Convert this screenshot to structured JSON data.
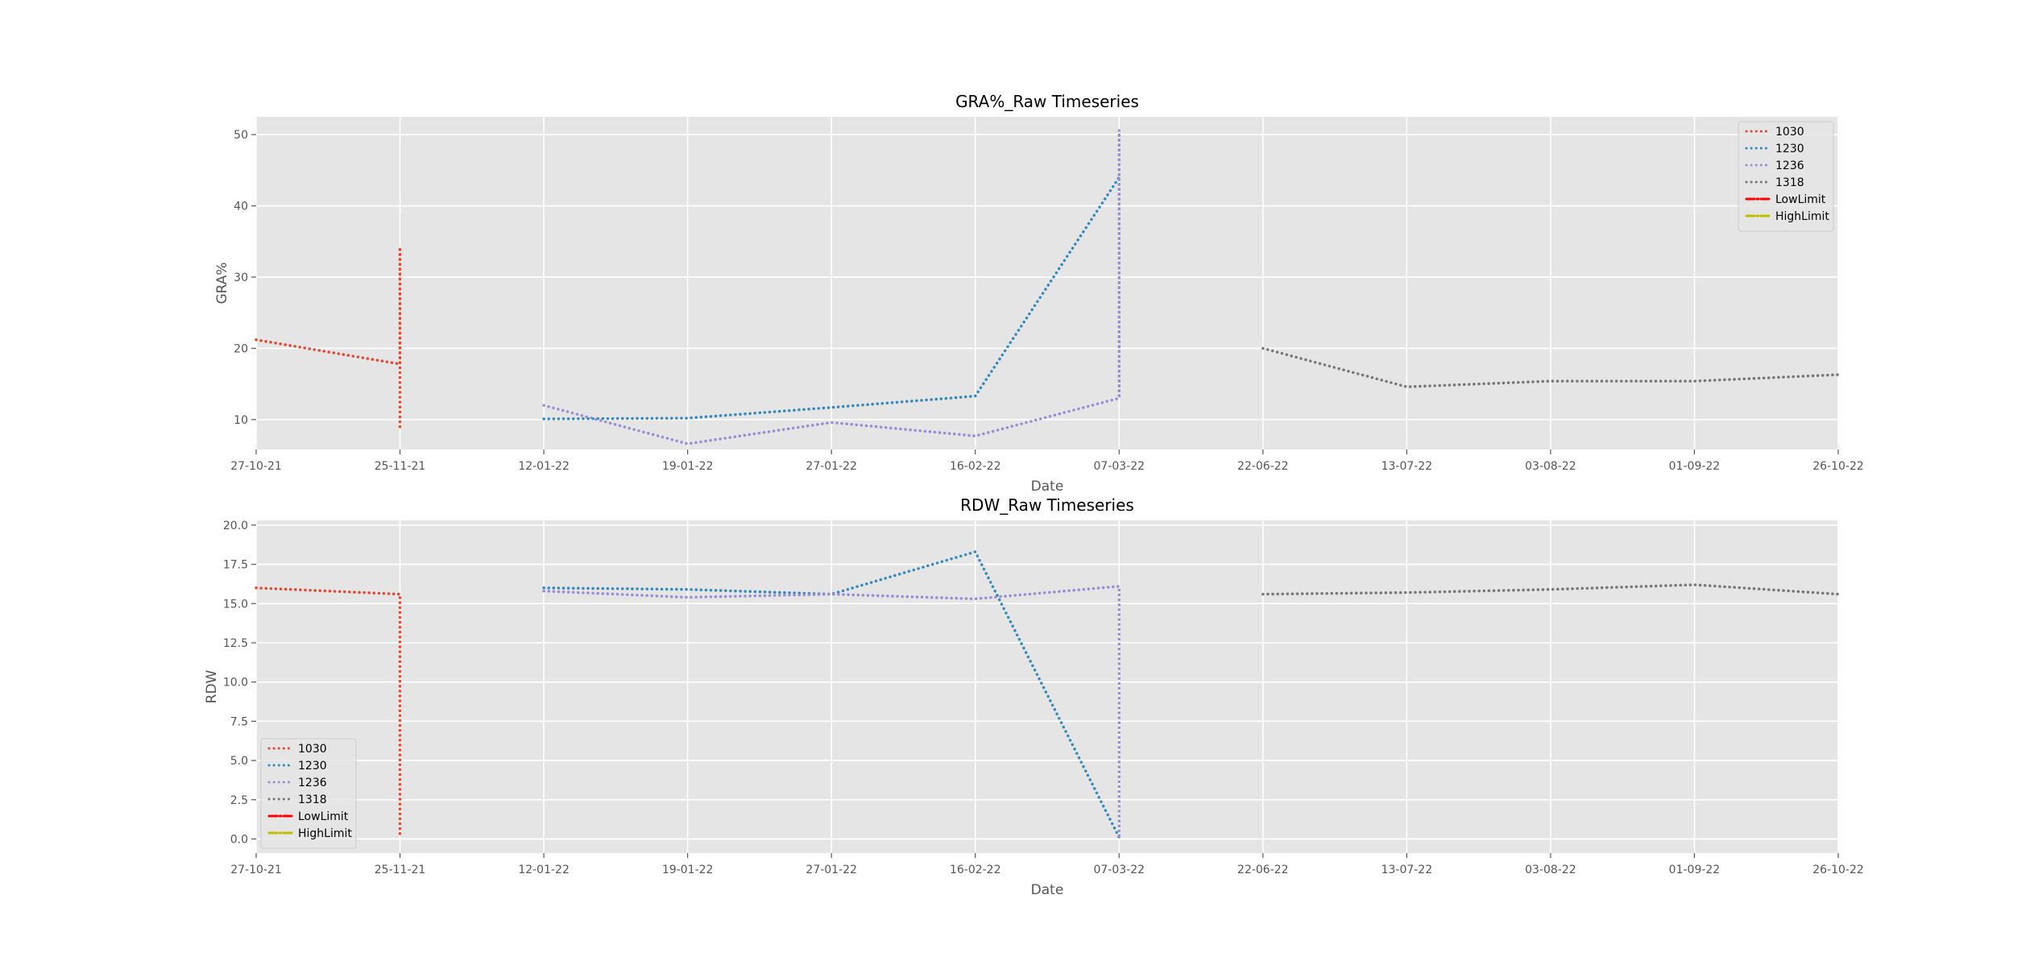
{
  "chart_data": [
    {
      "type": "line",
      "title": "GRA%_Raw Timeseries",
      "xlabel": "Date",
      "ylabel": "GRA%",
      "x_tick_labels": [
        "27-10-21",
        "25-11-21",
        "12-01-22",
        "19-01-22",
        "27-01-22",
        "16-02-22",
        "07-03-22",
        "22-06-22",
        "13-07-22",
        "03-08-22",
        "01-09-22",
        "26-10-22"
      ],
      "yticks": [
        10,
        20,
        30,
        40,
        50
      ],
      "ylim": [
        5.8,
        52.5
      ],
      "grid": true,
      "legend_position": "top-right",
      "series": [
        {
          "name": "1030",
          "color": "#E24A33",
          "style": "dotted",
          "points": [
            [
              0,
              21.2
            ],
            [
              1,
              17.8
            ],
            [
              1,
              34.2
            ],
            [
              1,
              9.0
            ]
          ]
        },
        {
          "name": "1230",
          "color": "#348ABD",
          "style": "dotted",
          "points": [
            [
              2,
              10.1
            ],
            [
              3,
              10.2
            ],
            [
              4,
              11.7
            ],
            [
              5,
              13.3
            ],
            [
              6,
              44.0
            ]
          ]
        },
        {
          "name": "1236",
          "color": "#988ED5",
          "style": "dotted",
          "points": [
            [
              2,
              12.0
            ],
            [
              3,
              6.6
            ],
            [
              4,
              9.6
            ],
            [
              5,
              7.7
            ],
            [
              6,
              13.0
            ],
            [
              6,
              50.6
            ],
            [
              6,
              12.8
            ]
          ]
        },
        {
          "name": "1318",
          "color": "#777777",
          "style": "dotted",
          "points": [
            [
              7,
              20.0
            ],
            [
              8,
              14.6
            ],
            [
              9,
              15.4
            ],
            [
              10,
              15.4
            ],
            [
              11,
              16.3
            ]
          ]
        },
        {
          "name": "LowLimit",
          "color": "#FF0000",
          "style": "dashdot",
          "points": []
        },
        {
          "name": "HighLimit",
          "color": "#BFBF00",
          "style": "dashdot",
          "points": []
        }
      ]
    },
    {
      "type": "line",
      "title": "RDW_Raw Timeseries",
      "xlabel": "Date",
      "ylabel": "RDW",
      "x_tick_labels": [
        "27-10-21",
        "25-11-21",
        "12-01-22",
        "19-01-22",
        "27-01-22",
        "16-02-22",
        "07-03-22",
        "22-06-22",
        "13-07-22",
        "03-08-22",
        "01-09-22",
        "26-10-22"
      ],
      "yticks": [
        "0.0",
        "2.5",
        "5.0",
        "7.5",
        "10.0",
        "12.5",
        "15.0",
        "17.5",
        "20.0"
      ],
      "ylim": [
        -0.9,
        20.3
      ],
      "grid": true,
      "legend_position": "lower-left",
      "series": [
        {
          "name": "1030",
          "color": "#E24A33",
          "style": "dotted",
          "points": [
            [
              0,
              16.0
            ],
            [
              1,
              15.6
            ],
            [
              1,
              0.1
            ]
          ]
        },
        {
          "name": "1230",
          "color": "#348ABD",
          "style": "dotted",
          "points": [
            [
              2,
              16.0
            ],
            [
              3,
              15.9
            ],
            [
              4,
              15.6
            ],
            [
              5,
              18.3
            ],
            [
              6,
              0.1
            ]
          ]
        },
        {
          "name": "1236",
          "color": "#988ED5",
          "style": "dotted",
          "points": [
            [
              2,
              15.8
            ],
            [
              3,
              15.4
            ],
            [
              4,
              15.6
            ],
            [
              5,
              15.3
            ],
            [
              6,
              16.1
            ],
            [
              6,
              0.0
            ]
          ]
        },
        {
          "name": "1318",
          "color": "#777777",
          "style": "dotted",
          "points": [
            [
              7,
              15.6
            ],
            [
              8,
              15.7
            ],
            [
              9,
              15.9
            ],
            [
              10,
              16.2
            ],
            [
              11,
              15.6
            ]
          ]
        },
        {
          "name": "LowLimit",
          "color": "#FF0000",
          "style": "dashdot",
          "points": []
        },
        {
          "name": "HighLimit",
          "color": "#BFBF00",
          "style": "dashdot",
          "points": []
        }
      ]
    }
  ]
}
